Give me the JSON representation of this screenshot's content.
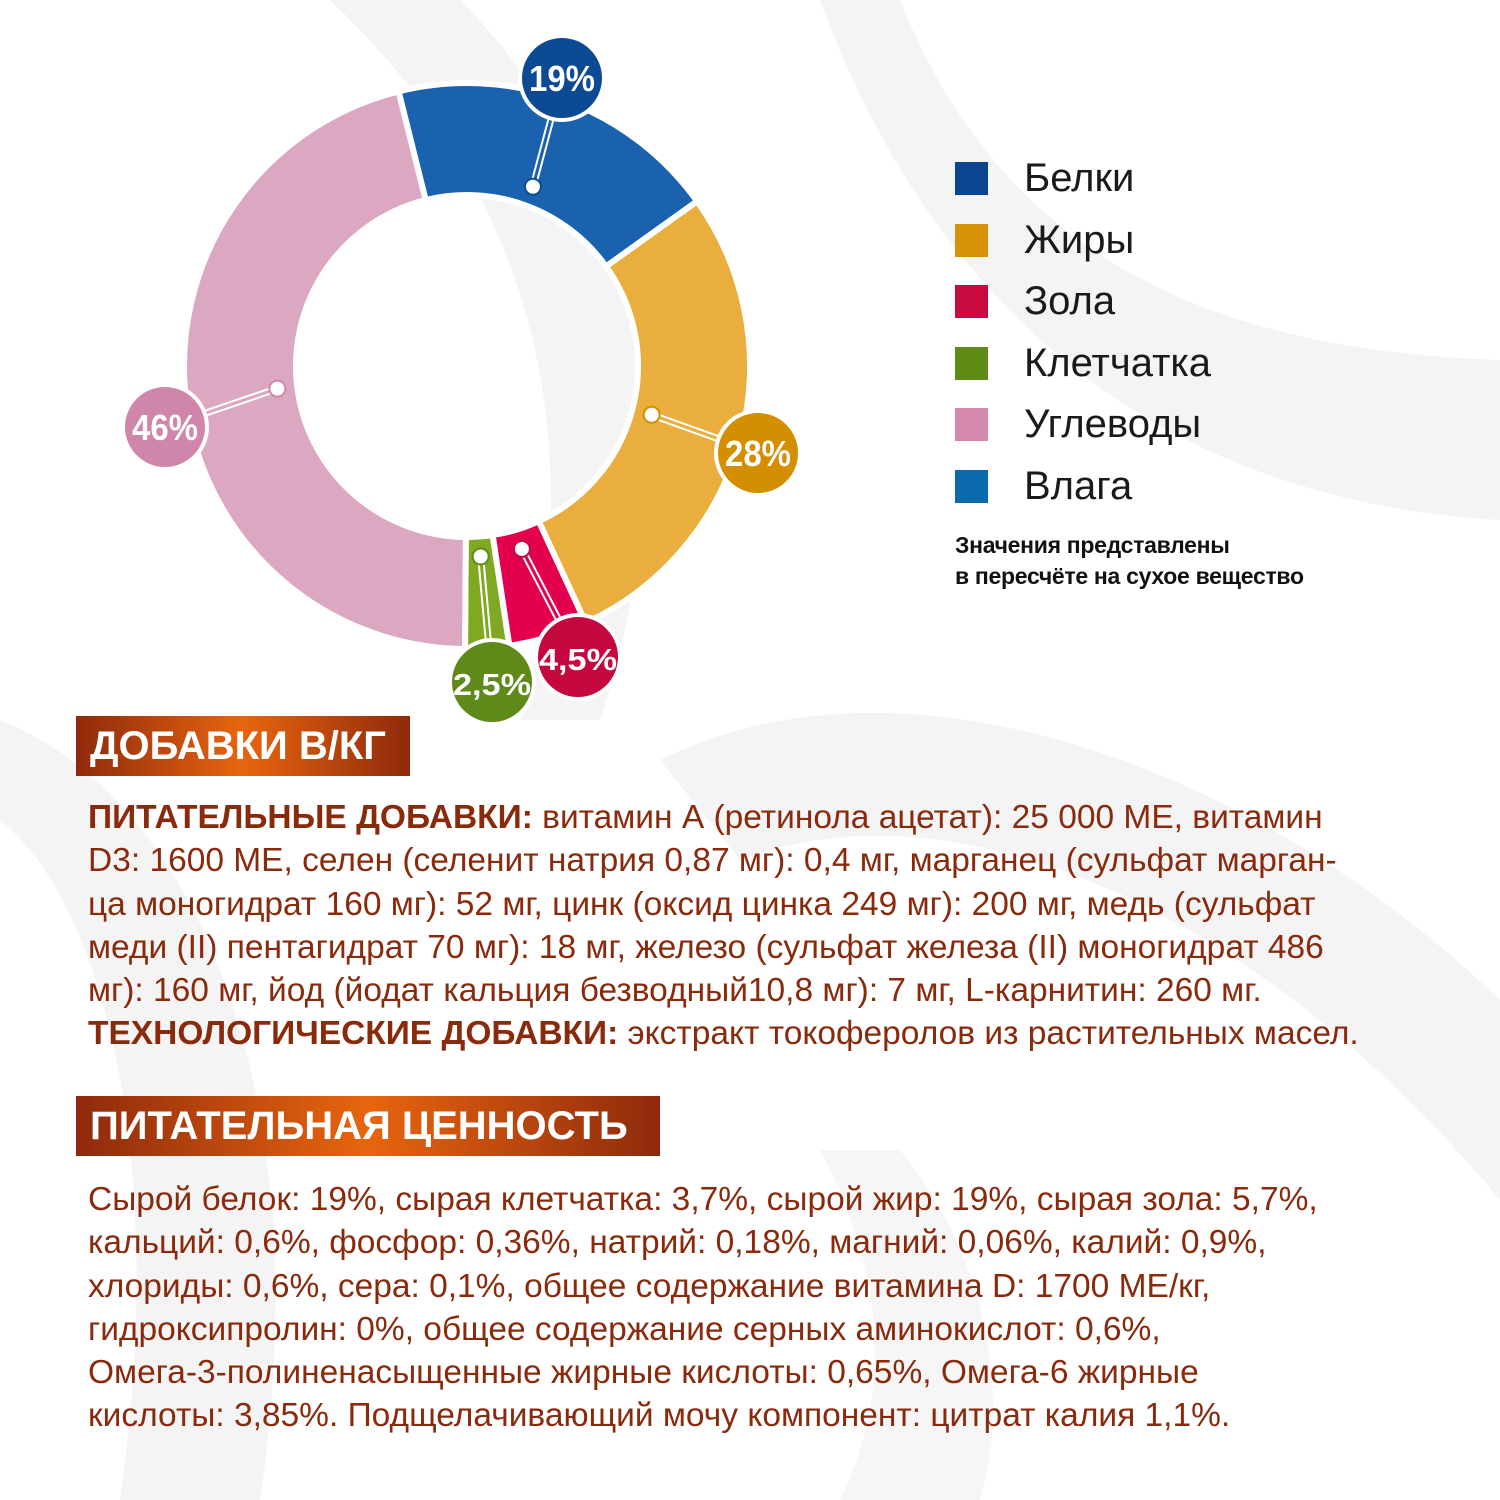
{
  "chart_data": {
    "type": "pie",
    "donut": true,
    "categories": [
      "Белки",
      "Жиры",
      "Зола",
      "Клетчатка",
      "Углеводы",
      "Влага"
    ],
    "values": [
      19,
      28,
      4.5,
      2.5,
      46,
      0
    ],
    "value_labels": [
      "19%",
      "28%",
      "4,5%",
      "2,5%",
      "46%",
      ""
    ],
    "slice_colors": [
      "#1a62ad",
      "#eaae3e",
      "#e3004f",
      "#80a820",
      "#dca7c0",
      "#0a6aac"
    ],
    "label_colors": [
      "#0d4a94",
      "#d48f00",
      "#c4083f",
      "#5f8a1a",
      "#d086aa",
      "#0a6aac"
    ],
    "legend": {
      "placement": "right",
      "items": [
        {
          "label": "Белки",
          "color": "#0b4592"
        },
        {
          "label": "Жиры",
          "color": "#d8920a"
        },
        {
          "label": "Зола",
          "color": "#c80a40"
        },
        {
          "label": "Клетчатка",
          "color": "#5f8a16"
        },
        {
          "label": "Углеводы",
          "color": "#d58aad"
        },
        {
          "label": "Влага",
          "color": "#0a6aac"
        }
      ]
    },
    "note": [
      "Значения представлены",
      "в пересчёте на сухое вещество"
    ]
  },
  "additives": {
    "title": "ДОБАВКИ В/КГ",
    "lines": [
      {
        "bold": "ПИТАТЕЛЬНЫЕ ДОБАВКИ:",
        "text": " витамин А (ретинола ацетат): 25 000 МЕ, витамин"
      },
      {
        "bold": "",
        "text": "D3: 1600 МЕ, селен (селенит натрия 0,87 мг): 0,4 мг, марганец (сульфат марган-"
      },
      {
        "bold": "",
        "text": "ца моногидрат 160 мг): 52 мг, цинк (оксид цинка 249 мг): 200 мг, медь (сульфат"
      },
      {
        "bold": "",
        "text": "меди (II) пентагидрат 70 мг): 18 мг, железо (сульфат железа (II) моногидрат 486"
      },
      {
        "bold": "",
        "text": "мг): 160 мг, йод (йодат кальция безводный10,8 мг): 7 мг, L-карнитин: 260 мг."
      },
      {
        "bold": "ТЕХНОЛОГИЧЕСКИЕ ДОБАВКИ:",
        "text": " экстракт токоферолов из растительных масел."
      }
    ]
  },
  "nutrition": {
    "title": "ПИТАТЕЛЬНАЯ ЦЕННОСТЬ",
    "lines": [
      "Сырой белок: 19%, сырая клетчатка: 3,7%, сырой жир: 19%, сырая зола: 5,7%,",
      "кальций: 0,6%, фосфор: 0,36%, натрий: 0,18%, магний: 0,06%, калий: 0,9%,",
      "хлориды: 0,6%, сера: 0,1%, общее содержание витамина D: 1700 МЕ/кг,",
      "гидроксипролин: 0%, общее содержание серных аминокислот: 0,6%,",
      "Омега-3-полиненасыщенные жирные кислоты: 0,65%, Омега-6 жирные",
      "кислоты: 3,85%. Подщелачивающий мочу компонент: цитрат калия 1,1%."
    ]
  }
}
